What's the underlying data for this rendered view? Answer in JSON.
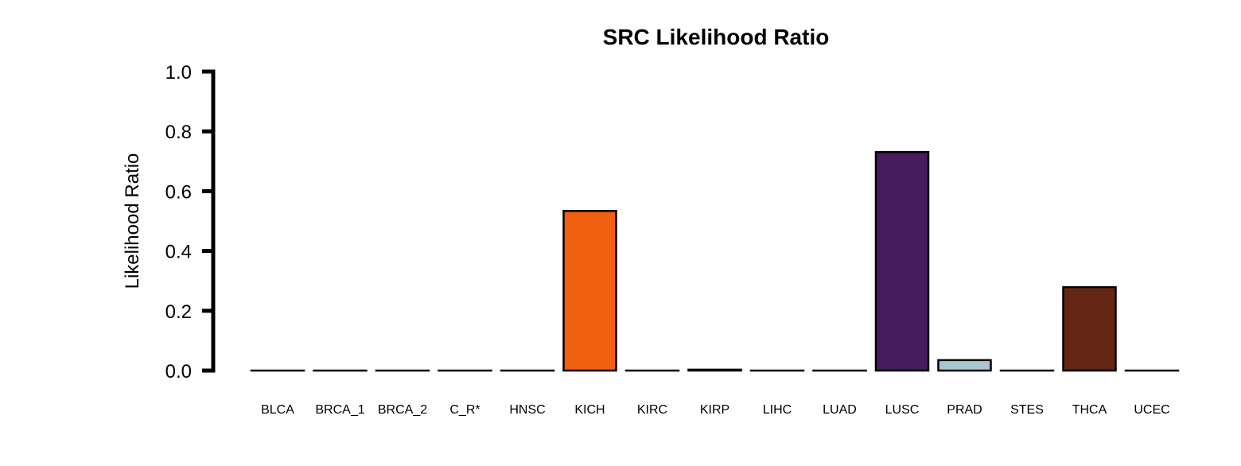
{
  "chart_data": {
    "type": "bar",
    "title": "SRC Likelihood Ratio",
    "xlabel": "",
    "ylabel": "Likelihood Ratio",
    "ylim": [
      0,
      1
    ],
    "yticks": [
      "0.0",
      "0.2",
      "0.4",
      "0.6",
      "0.8",
      "1.0"
    ],
    "ytick_values": [
      0,
      0.2,
      0.4,
      0.6,
      0.8,
      1.0
    ],
    "categories": [
      "BLCA",
      "BRCA_1",
      "BRCA_2",
      "C_R*",
      "HNSC",
      "KICH",
      "KIRC",
      "KIRP",
      "LIHC",
      "LUAD",
      "LUSC",
      "PRAD",
      "STES",
      "THCA",
      "UCEC"
    ],
    "values": [
      0,
      0,
      0,
      0,
      0,
      0.534,
      0,
      0.003,
      0,
      0,
      0.731,
      0.035,
      0,
      0.279,
      0
    ],
    "colors": [
      "#ffffff",
      "#ffffff",
      "#ffffff",
      "#ffffff",
      "#ffffff",
      "#f06010",
      "#ffffff",
      "#ffffff",
      "#ffffff",
      "#ffffff",
      "#461c5e",
      "#a6c6d0",
      "#ffffff",
      "#652614",
      "#ffffff"
    ],
    "grid": false,
    "legend": "none"
  }
}
